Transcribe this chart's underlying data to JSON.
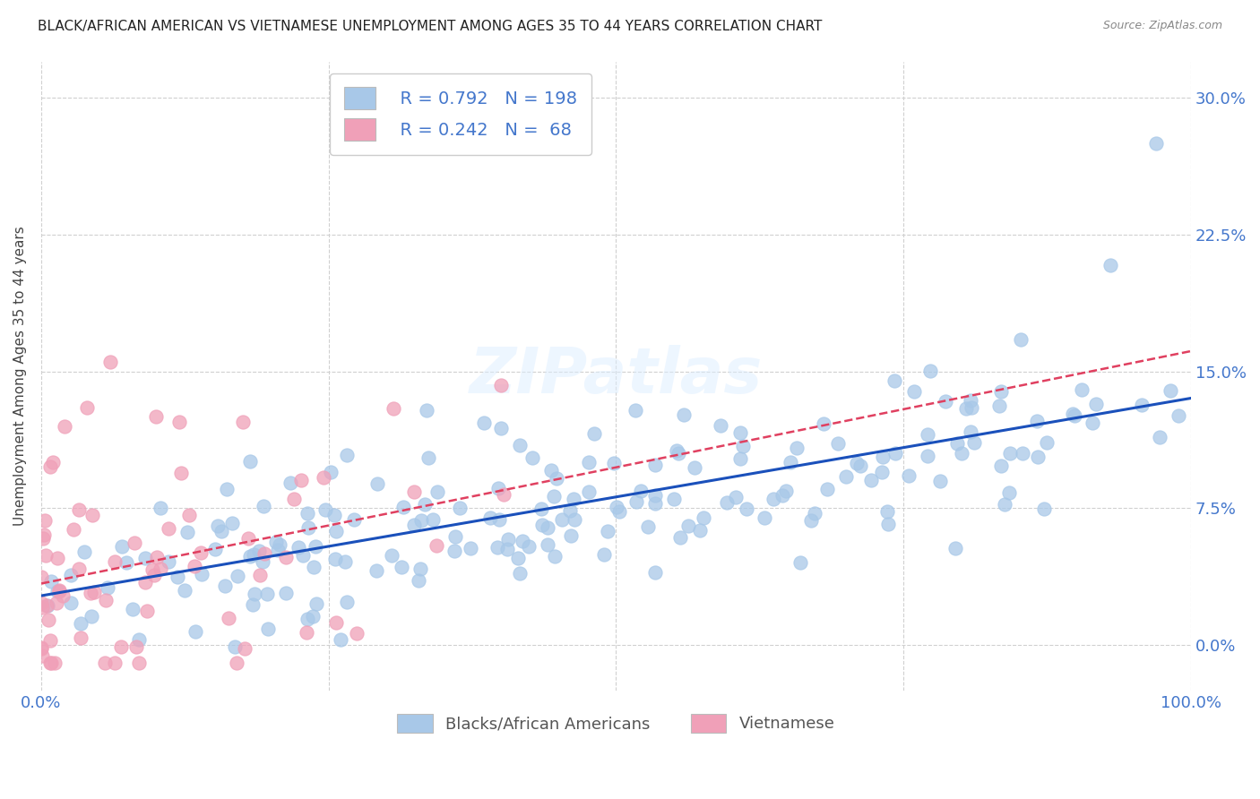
{
  "title": "BLACK/AFRICAN AMERICAN VS VIETNAMESE UNEMPLOYMENT AMONG AGES 35 TO 44 YEARS CORRELATION CHART",
  "source": "Source: ZipAtlas.com",
  "ylabel": "Unemployment Among Ages 35 to 44 years",
  "xlim": [
    0,
    1.0
  ],
  "ylim": [
    -0.025,
    0.32
  ],
  "xticks": [
    0.0,
    0.25,
    0.5,
    0.75,
    1.0
  ],
  "yticks": [
    0.0,
    0.075,
    0.15,
    0.225,
    0.3
  ],
  "ytick_labels_right": [
    "0.0%",
    "7.5%",
    "15.0%",
    "22.5%",
    "30.0%"
  ],
  "blue_R": 0.792,
  "blue_N": 198,
  "pink_R": 0.242,
  "pink_N": 68,
  "blue_color": "#a8c8e8",
  "pink_color": "#f0a0b8",
  "blue_line_color": "#1a50bb",
  "pink_line_color": "#e04060",
  "background_color": "#ffffff",
  "grid_color": "#d0d0d0",
  "tick_label_color": "#4477cc",
  "legend_text_color": "#4477cc",
  "title_color": "#222222",
  "source_color": "#888888",
  "ylabel_color": "#444444",
  "watermark_color": "#ddeeff",
  "watermark_alpha": 0.5
}
